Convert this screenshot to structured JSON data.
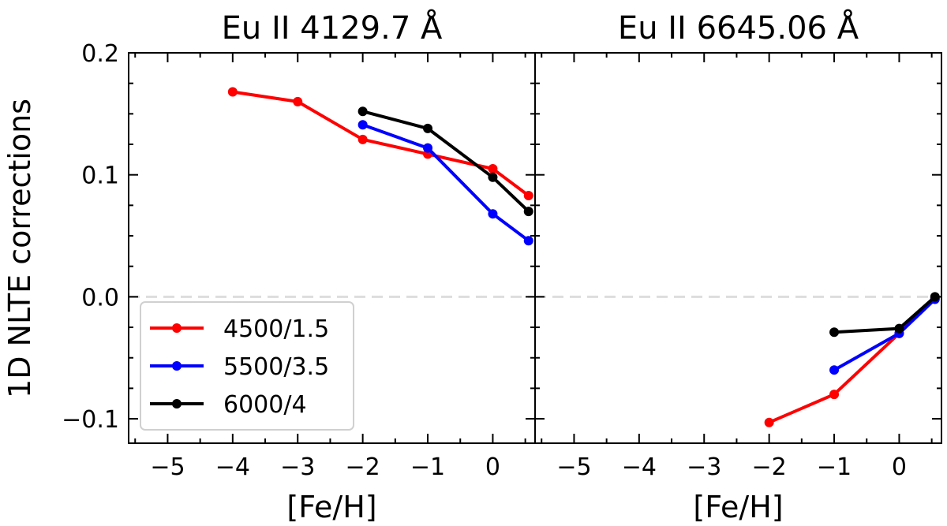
{
  "ylabel": "1D NLTE corrections",
  "colors": {
    "red": "#ff0000",
    "blue": "#0000ff",
    "black": "#000000",
    "zero_line": "#dddddd"
  },
  "legend": [
    {
      "label": "4500/1.5",
      "color": "#ff0000"
    },
    {
      "label": "5500/3.5",
      "color": "#0000ff"
    },
    {
      "label": "6000/4",
      "color": "#000000"
    }
  ],
  "chart_data": [
    {
      "type": "line",
      "title": "Eu II 4129.7 Å",
      "xlabel": "[Fe/H]",
      "ylabel": "1D NLTE corrections",
      "xlim": [
        -5.6,
        0.65
      ],
      "ylim": [
        -0.12,
        0.2
      ],
      "xticks": [
        -5,
        -4,
        -3,
        -2,
        -1,
        0
      ],
      "xtick_labels": [
        "−5",
        "−4",
        "−3",
        "−2",
        "−1",
        "0"
      ],
      "yticks": [
        -0.1,
        0.0,
        0.1,
        0.2
      ],
      "ytick_labels": [
        "−0.1",
        "0.0",
        "0.1",
        "0.2"
      ],
      "zero_line": "dashed",
      "legend_position": "lower-left",
      "series": [
        {
          "name": "4500/1.5",
          "color": "#ff0000",
          "x": [
            -4,
            -3,
            -2,
            -1,
            0,
            0.55
          ],
          "y": [
            0.168,
            0.16,
            0.129,
            0.117,
            0.105,
            0.083
          ]
        },
        {
          "name": "5500/3.5",
          "color": "#0000ff",
          "x": [
            -2,
            -1,
            0,
            0.55
          ],
          "y": [
            0.141,
            0.122,
            0.068,
            0.046
          ]
        },
        {
          "name": "6000/4",
          "color": "#000000",
          "x": [
            -2,
            -1,
            0,
            0.55
          ],
          "y": [
            0.152,
            0.138,
            0.098,
            0.07
          ]
        }
      ]
    },
    {
      "type": "line",
      "title": "Eu II 6645.06 Å",
      "xlabel": "[Fe/H]",
      "xlim": [
        -5.6,
        0.65
      ],
      "ylim": [
        -0.12,
        0.2
      ],
      "xticks": [
        -5,
        -4,
        -3,
        -2,
        -1,
        0
      ],
      "xtick_labels": [
        "−5",
        "−4",
        "−3",
        "−2",
        "−1",
        "0"
      ],
      "zero_line": "dashed",
      "series": [
        {
          "name": "4500/1.5",
          "color": "#ff0000",
          "x": [
            -2,
            -1,
            0,
            0.55
          ],
          "y": [
            -0.103,
            -0.08,
            -0.03,
            -0.001
          ]
        },
        {
          "name": "5500/3.5",
          "color": "#0000ff",
          "x": [
            -1,
            0,
            0.55
          ],
          "y": [
            -0.06,
            -0.03,
            -0.002
          ]
        },
        {
          "name": "6000/4",
          "color": "#000000",
          "x": [
            -1,
            0,
            0.55
          ],
          "y": [
            -0.029,
            -0.026,
            0.0
          ]
        }
      ]
    }
  ]
}
